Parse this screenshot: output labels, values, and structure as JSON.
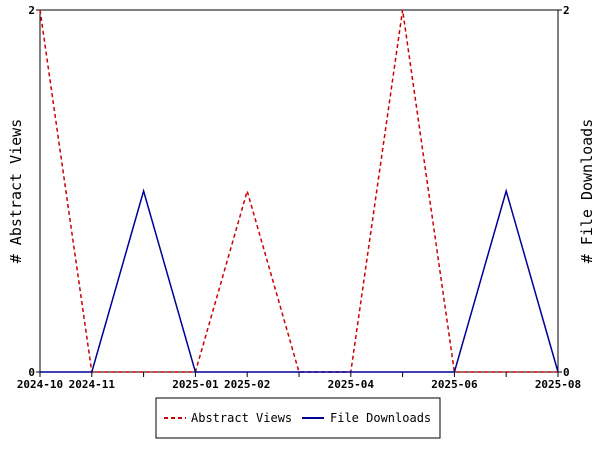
{
  "chart_data": {
    "type": "line",
    "x": [
      "2024-10",
      "2024-11",
      "2024-12",
      "2025-01",
      "2025-02",
      "2025-03",
      "2025-04",
      "2025-05",
      "2025-06",
      "2025-07",
      "2025-08"
    ],
    "x_tick_labels": [
      "2024-10",
      "2024-11",
      "2025-01",
      "2025-02",
      "2025-04",
      "2025-06",
      "2025-08"
    ],
    "series": [
      {
        "name": "Abstract Views",
        "axis": "left",
        "color": "#cc0000",
        "dash": "dashed",
        "values": [
          2,
          0,
          0,
          0,
          1,
          0,
          0,
          2,
          0,
          0,
          0
        ]
      },
      {
        "name": "File Downloads",
        "axis": "right",
        "color": "#000099",
        "dash": "solid",
        "values": [
          0,
          0,
          1,
          0,
          0,
          0,
          0,
          0,
          0,
          1,
          0
        ]
      }
    ],
    "ylabel_left": "# Abstract Views",
    "ylabel_right": "# File Downloads",
    "ylim_left": [
      0,
      2
    ],
    "ylim_right": [
      0,
      2
    ],
    "y_ticks_left": [
      "0",
      "2"
    ],
    "y_ticks_right": [
      "0",
      "2"
    ],
    "grid": false,
    "legend_position": "bottom"
  }
}
